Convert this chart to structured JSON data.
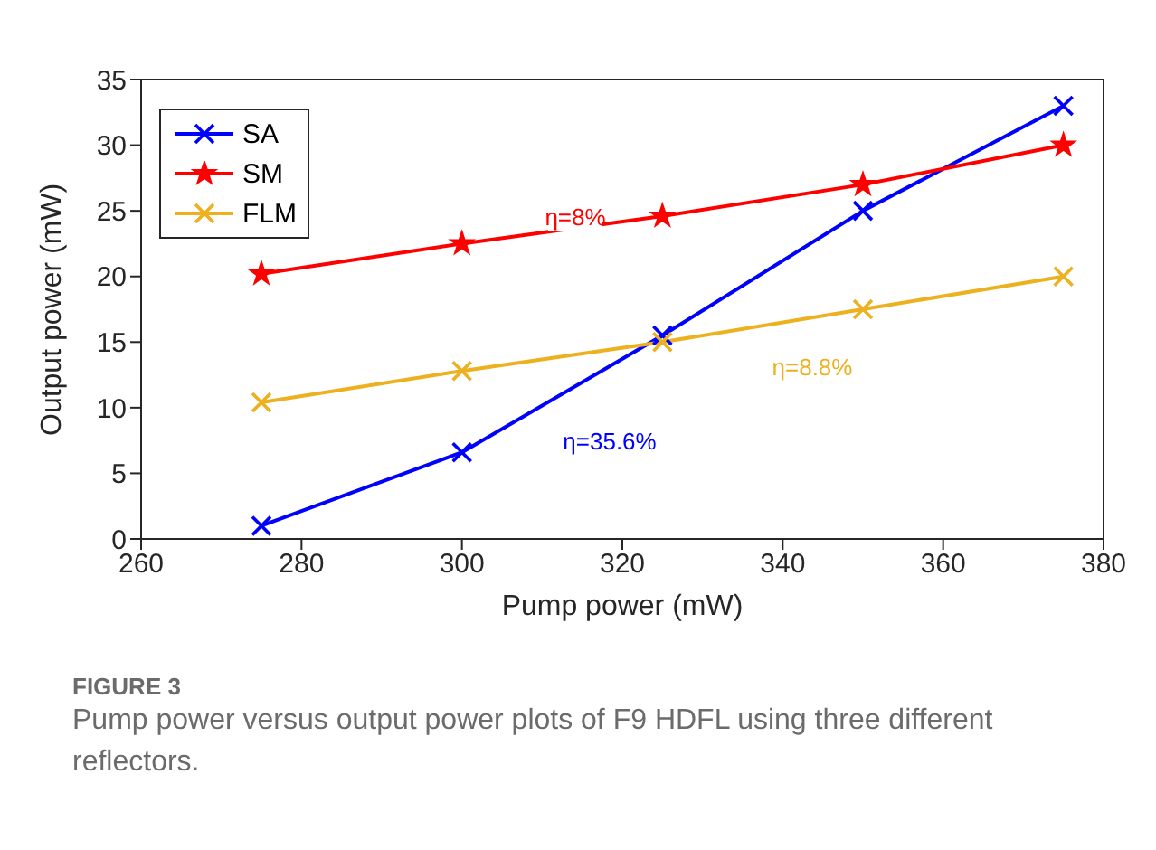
{
  "chart_data": {
    "type": "line",
    "x": [
      275,
      300,
      325,
      350,
      375
    ],
    "series": [
      {
        "name": "SA",
        "color": "#0000ff",
        "marker": "cross",
        "values": [
          1,
          6.6,
          15.5,
          25,
          33
        ]
      },
      {
        "name": "SM",
        "color": "#ff0000",
        "marker": "star",
        "values": [
          20.2,
          22.5,
          24.6,
          27,
          30
        ]
      },
      {
        "name": "FLM",
        "color": "#edb120",
        "marker": "cross",
        "values": [
          10.4,
          12.8,
          15,
          17.5,
          20
        ]
      }
    ],
    "xlabel": "Pump power (mW)",
    "ylabel": "Output power (mW)",
    "xlim": [
      260,
      380
    ],
    "xticks": [
      260,
      280,
      300,
      320,
      340,
      360,
      380
    ],
    "ylim": [
      0,
      35
    ],
    "yticks": [
      0,
      5,
      10,
      15,
      20,
      25,
      30,
      35
    ],
    "grid": false,
    "legend": "top left",
    "line_style": "solid",
    "annotations": [
      "η=8%",
      "η=8.8%",
      "η=35.6%",
      "FIGURE 3",
      "Pump power versus output power plots of F9 HDFL using three different reflectors."
    ]
  }
}
